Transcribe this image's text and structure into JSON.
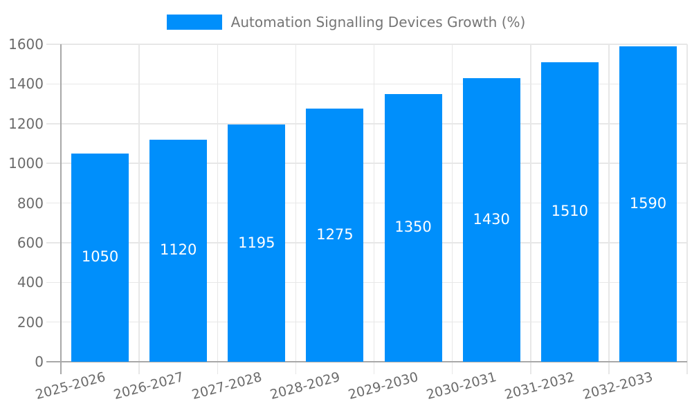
{
  "chart_data": {
    "type": "bar",
    "title": "Automation Signalling Devices Growth (%)",
    "categories": [
      "2025-2026",
      "2026-2027",
      "2027-2028",
      "2028-2029",
      "2029-2030",
      "2030-2031",
      "2031-2032",
      "2032-2033"
    ],
    "values": [
      1050,
      1120,
      1195,
      1275,
      1350,
      1430,
      1510,
      1590
    ],
    "xlabel": "",
    "ylabel": "",
    "ylim": [
      0,
      1600
    ],
    "ytick_step": 200,
    "ytick_labels": [
      "0",
      "200",
      "400",
      "600",
      "800",
      "1000",
      "1200",
      "1400",
      "1600"
    ],
    "grid": "on",
    "legend_position": "top",
    "x_label_rotation_deg": -15,
    "data_labels": "inside-center",
    "colors": {
      "bar": "#008FFB",
      "bar_value_label": "#ffffff",
      "axis_text": "#6b6b6b",
      "legend_text": "#757575",
      "gridline": "#e7e7e7",
      "axis_line": "#a8a8a8"
    }
  }
}
